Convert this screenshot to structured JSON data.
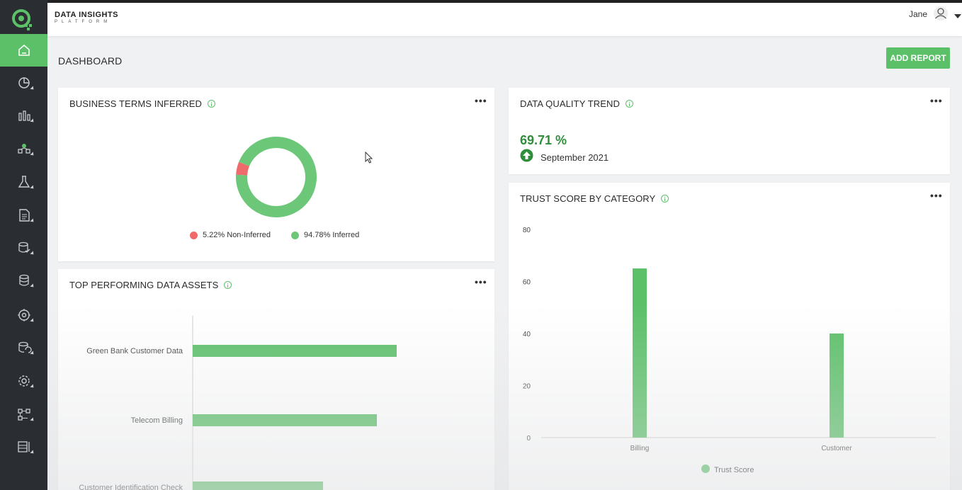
{
  "header": {
    "brand_title": "DATA INSIGHTS",
    "brand_subtitle": "PLATFORM",
    "user_name": "Jane"
  },
  "sidebar": {
    "items": [
      {
        "name": "home-icon",
        "active": true
      },
      {
        "name": "pie-chart-icon"
      },
      {
        "name": "bar-chart-icon"
      },
      {
        "name": "data-network-icon"
      },
      {
        "name": "flask-icon"
      },
      {
        "name": "document-icon"
      },
      {
        "name": "database-check-icon"
      },
      {
        "name": "database-icon"
      },
      {
        "name": "target-icon"
      },
      {
        "name": "database-sync-icon"
      },
      {
        "name": "gear-icon"
      },
      {
        "name": "workflow-icon"
      },
      {
        "name": "list-icon"
      }
    ],
    "accent": "#5cc069"
  },
  "page": {
    "title": "DASHBOARD",
    "add_report_label": "ADD REPORT"
  },
  "cards": {
    "business_terms": {
      "title": "BUSINESS TERMS INFERRED",
      "more": "•••",
      "legend": [
        {
          "label": "5.22% Non-Inferred",
          "color": "#ef6a6a"
        },
        {
          "label": "94.78% Inferred",
          "color": "#6cc878"
        }
      ]
    },
    "data_quality": {
      "title": "DATA QUALITY TREND",
      "more": "•••",
      "value": "69.71 %",
      "date": "September 2021",
      "trend_icon": "arrow-up-circle-icon"
    },
    "top_assets": {
      "title": "TOP PERFORMING DATA ASSETS",
      "more": "•••"
    },
    "trust_score": {
      "title": "TRUST SCORE BY CATEGORY",
      "more": "•••"
    }
  },
  "chart_data": [
    {
      "type": "pie",
      "title": "BUSINESS TERMS INFERRED",
      "categories": [
        "Non-Inferred",
        "Inferred"
      ],
      "values": [
        5.22,
        94.78
      ],
      "colors": [
        "#ef6a6a",
        "#6cc878"
      ],
      "donut": true,
      "legend": "bottom"
    },
    {
      "type": "bar",
      "orientation": "horizontal",
      "title": "TOP PERFORMING DATA ASSETS",
      "categories": [
        "Green Bank Customer Data",
        "Telecom Billing",
        "Customer Identification Check"
      ],
      "values": [
        72,
        65,
        46
      ],
      "xlim": [
        0,
        100
      ],
      "color": "#5cc069"
    },
    {
      "type": "bar",
      "title": "TRUST SCORE BY CATEGORY",
      "categories": [
        "Billing",
        "Customer"
      ],
      "series": [
        {
          "name": "Trust Score",
          "values": [
            65,
            40
          ],
          "color": "#5cc069"
        }
      ],
      "ylim": [
        0,
        80
      ],
      "yticks": [
        "0",
        "20",
        "40",
        "60",
        "80"
      ],
      "legend": "bottom"
    }
  ]
}
